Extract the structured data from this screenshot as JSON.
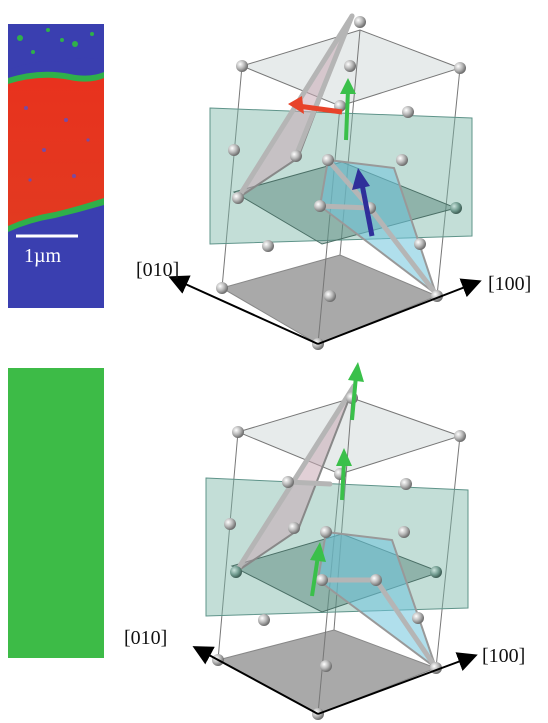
{
  "panels": [
    {
      "micrograph": {
        "scale_bar_label": "1µm",
        "colors": [
          "#3a3fb0",
          "#e8321e",
          "#2fb04a"
        ]
      },
      "axes": {
        "left": "[010]",
        "right": "[100]"
      },
      "arrows": [
        {
          "color": "#e8432a",
          "name": "red-arrow"
        },
        {
          "color": "#3ac04a",
          "name": "green-arrow"
        },
        {
          "color": "#2f2f9a",
          "name": "blue-arrow"
        }
      ]
    },
    {
      "micrograph": {
        "colors": [
          "#3dbb47"
        ]
      },
      "axes": {
        "left": "[010]",
        "right": "[100]"
      },
      "arrows": [
        {
          "color": "#3ac04a",
          "name": "green-arrow"
        },
        {
          "color": "#3ac04a",
          "name": "green-arrow"
        },
        {
          "color": "#3ac04a",
          "name": "green-arrow"
        }
      ]
    }
  ]
}
